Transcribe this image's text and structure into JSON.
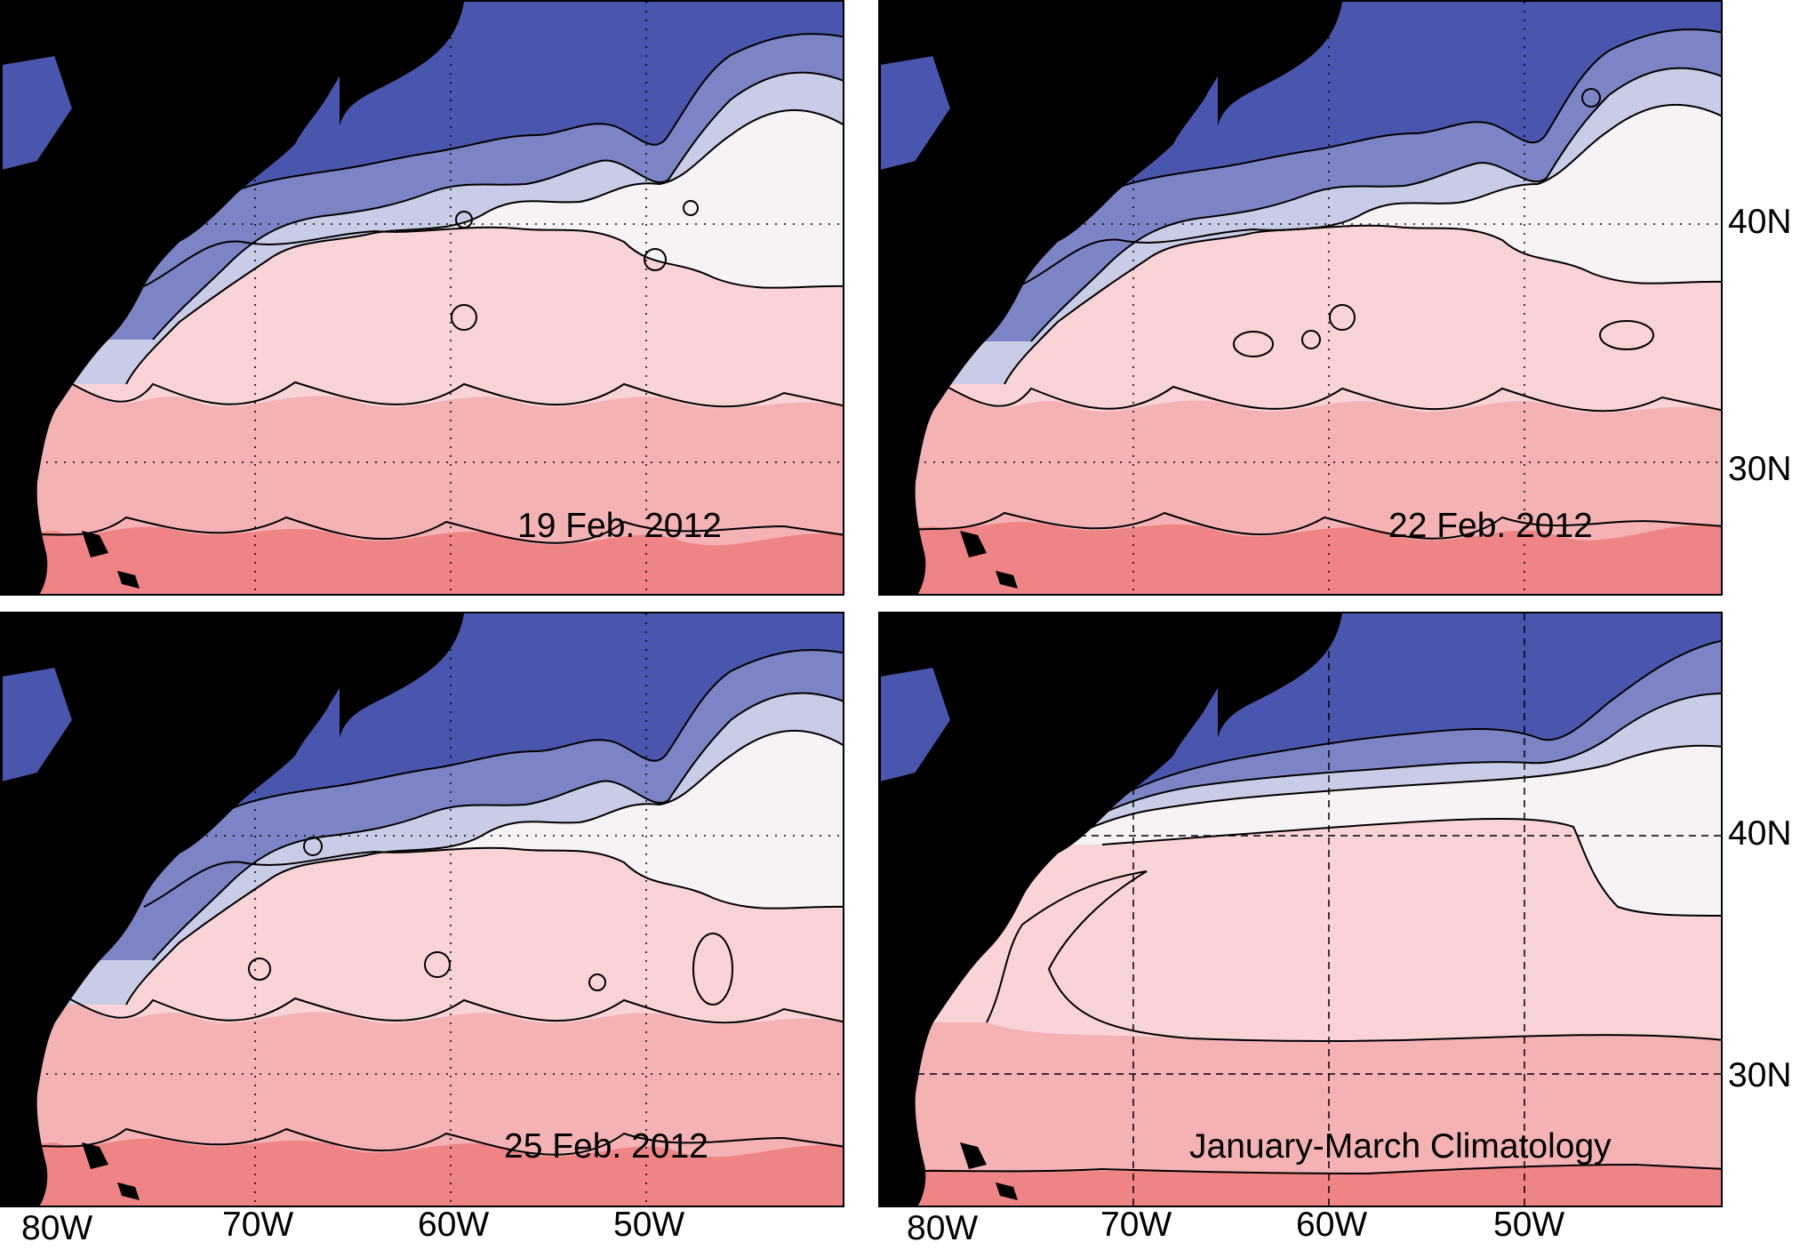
{
  "panels": [
    {
      "name": "panel-19-feb-2012",
      "label": "19 Feb. 2012",
      "gridline_style": "dotted"
    },
    {
      "name": "panel-22-feb-2012",
      "label": "22 Feb. 2012",
      "gridline_style": "dotted"
    },
    {
      "name": "panel-25-feb-2012",
      "label": "25 Feb. 2012",
      "gridline_style": "dotted"
    },
    {
      "name": "panel-climatology",
      "label": "January-March Climatology",
      "gridline_style": "dashed"
    }
  ],
  "longitude_ticks": [
    "80W",
    "70W",
    "60W",
    "50W"
  ],
  "latitude_ticks": [
    "40N",
    "30N"
  ],
  "colors": {
    "land": "#000000",
    "contour_line": "#000000",
    "cold_deep": "#4a56ad",
    "cold_mid": "#7c84c6",
    "cold_light": "#c9cce6",
    "neutral": "#f6f2f5",
    "warm_light": "#f9d3d5",
    "warm_mid": "#f4b2b5",
    "warm_deep": "#ee8486",
    "gridline": "#000000",
    "coast_accent": "#e0303a"
  }
}
